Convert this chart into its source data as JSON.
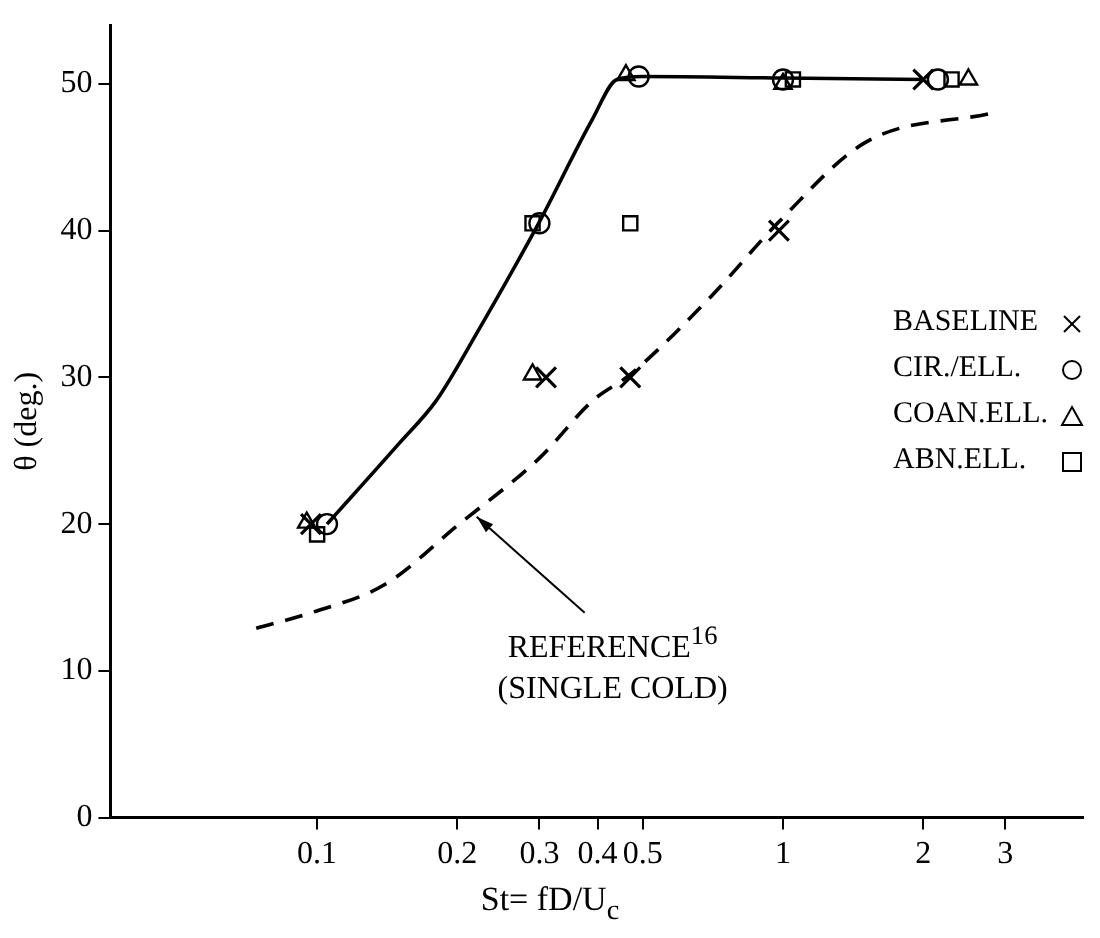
{
  "chart_data": {
    "type": "scatter",
    "xlabel": "St= fD/U$_{c}$",
    "ylabel": "θ (deg.)",
    "log": "x",
    "grid": false,
    "legend": "right",
    "xlim": [
      0.036,
      4.4
    ],
    "xticks": [
      0.1,
      0.2,
      0.3,
      0.4,
      0.5,
      1,
      2,
      3
    ],
    "ylim": [
      0,
      54
    ],
    "yticks": [
      0,
      10,
      20,
      30,
      40,
      50
    ],
    "annotations": [
      {
        "text": "REFERENCE$^{16}$\n(SINGLE COLD)",
        "x": 0.22,
        "y": 20.5
      }
    ],
    "series": [
      {
        "name": "BASELINE",
        "color": "#000000",
        "marker": "cross",
        "x": [
          0.097,
          0.31,
          0.47,
          0.98,
          2.0
        ],
        "values": [
          20,
          30,
          30,
          40,
          50.3
        ]
      },
      {
        "name": "CIR./ELL.",
        "color": "#000000",
        "marker": "circle",
        "x": [
          0.105,
          0.3,
          0.49,
          1.0,
          2.15
        ],
        "values": [
          20,
          40.5,
          50.5,
          50.3,
          50.3
        ]
      },
      {
        "name": "COAN.ELL.",
        "color": "#000000",
        "marker": "triangle",
        "x": [
          0.095,
          0.29,
          0.46,
          1.0,
          2.5
        ],
        "values": [
          20.1,
          30.2,
          50.6,
          50,
          50.3
        ]
      },
      {
        "name": "ABN.ELL.",
        "color": "#000000",
        "marker": "square",
        "x": [
          0.1,
          0.29,
          0.47,
          1.05,
          2.3
        ],
        "values": [
          19.3,
          40.5,
          40.5,
          50.3,
          50.3
        ]
      },
      {
        "type": "line",
        "color": "#000000",
        "marker": "none",
        "line_style": "solid",
        "x": [
          0.105,
          0.15,
          0.18,
          0.22,
          0.3,
          0.39,
          0.44,
          0.5,
          1,
          2
        ],
        "values": [
          20,
          25.5,
          28.4,
          33,
          40.6,
          47.6,
          50.3,
          50.5,
          50.4,
          50.3
        ]
      },
      {
        "type": "line",
        "color": "#000000",
        "marker": "none",
        "line_style": "dashed",
        "x": [
          0.074,
          0.098,
          0.14,
          0.2,
          0.3,
          0.39,
          0.47,
          0.7,
          0.98,
          1.5,
          2.8
        ],
        "values": [
          12.9,
          14,
          15.9,
          19.9,
          24.5,
          28.4,
          30.2,
          35.5,
          40.6,
          46,
          48
        ]
      }
    ]
  }
}
